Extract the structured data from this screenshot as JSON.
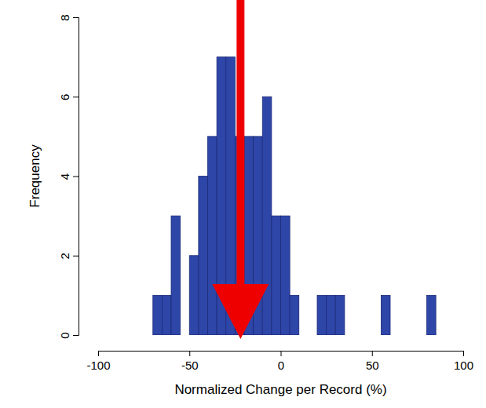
{
  "chart_data": {
    "type": "histogram",
    "x_label": "Normalized Change per Record (%)",
    "y_label": "Frequency",
    "bins": [
      -70,
      -65,
      -60,
      -55,
      -50,
      -45,
      -40,
      -35,
      -30,
      -25,
      -20,
      -15,
      -10,
      -5,
      0,
      5,
      10,
      15,
      20,
      25,
      30,
      35,
      40,
      45,
      50,
      55,
      60,
      65,
      70,
      75,
      80,
      85
    ],
    "values": [
      1,
      1,
      3,
      0,
      2,
      4,
      5,
      7,
      7,
      5,
      5,
      5,
      6,
      3,
      3,
      1,
      0,
      0,
      1,
      1,
      1,
      0,
      0,
      0,
      0,
      1,
      0,
      0,
      0,
      0,
      1
    ],
    "color": "#2e46a8",
    "arrow_value": -22,
    "xlim": [
      -100,
      100
    ],
    "xticks": [
      -100,
      -50,
      0,
      50,
      100
    ],
    "ylim": [
      0,
      8
    ],
    "yticks": [
      0,
      2,
      4,
      6,
      8
    ],
    "grid": false
  }
}
